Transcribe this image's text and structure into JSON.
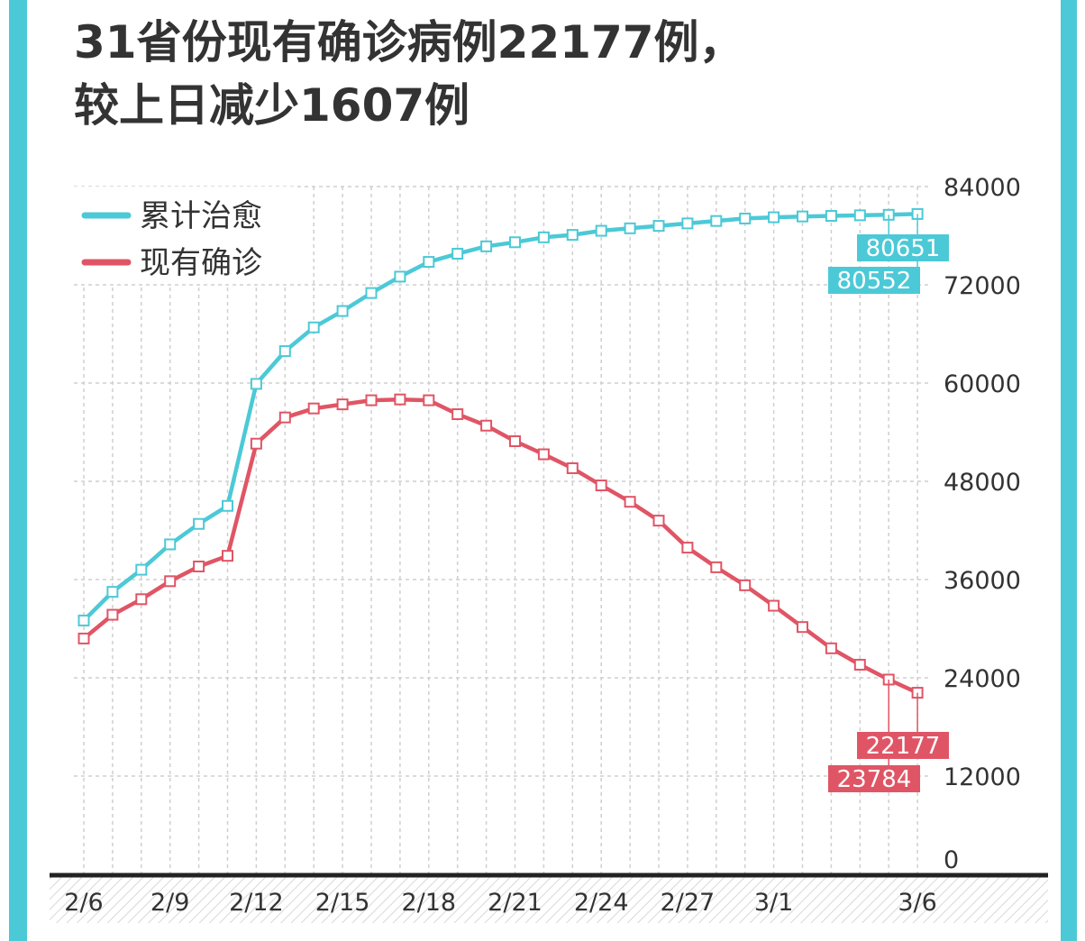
{
  "title_lines": [
    "31省份现有确诊病例22177例，",
    "较上日减少1607例"
  ],
  "colors": {
    "border": "#4cc9d6",
    "cured": "#4cc9d6",
    "active": "#e05565",
    "grid": "#cfcfcf",
    "axis": "#222222",
    "text": "#333333"
  },
  "chart_data": {
    "type": "line",
    "title": "31省份现有确诊病例22177例，较上日减少1607例",
    "x": [
      "2/6",
      "2/7",
      "2/8",
      "2/9",
      "2/10",
      "2/11",
      "2/12",
      "2/13",
      "2/14",
      "2/15",
      "2/16",
      "2/17",
      "2/18",
      "2/19",
      "2/20",
      "2/21",
      "2/22",
      "2/23",
      "2/24",
      "2/25",
      "2/26",
      "2/27",
      "2/28",
      "2/29",
      "3/1",
      "3/2",
      "3/3",
      "3/4",
      "3/5",
      "3/6"
    ],
    "x_tick_labels": [
      "2/6",
      "2/9",
      "2/12",
      "2/15",
      "2/18",
      "2/21",
      "2/24",
      "2/27",
      "3/1",
      "3/6"
    ],
    "x_tick_indices": [
      0,
      3,
      6,
      9,
      12,
      15,
      18,
      21,
      24,
      29
    ],
    "ylim": [
      0,
      84000
    ],
    "y_ticks": [
      0,
      12000,
      24000,
      36000,
      48000,
      60000,
      72000,
      84000
    ],
    "y_axis_position": "right",
    "grid": true,
    "legend_position": "top-left",
    "series": [
      {
        "name": "累计治愈",
        "color": "#4cc9d6",
        "values": [
          31000,
          34500,
          37200,
          40300,
          42800,
          45000,
          59900,
          63900,
          66800,
          68800,
          71000,
          73000,
          74800,
          75800,
          76700,
          77200,
          77800,
          78100,
          78600,
          78900,
          79200,
          79500,
          79800,
          80100,
          80250,
          80350,
          80420,
          80490,
          80552,
          80651
        ]
      },
      {
        "name": "现有确诊",
        "color": "#e05565",
        "values": [
          28800,
          31700,
          33600,
          35800,
          37600,
          38900,
          52600,
          55800,
          56900,
          57400,
          57900,
          58000,
          57900,
          56200,
          54800,
          52900,
          51300,
          49600,
          47500,
          45500,
          43200,
          39900,
          37500,
          35300,
          32800,
          30200,
          27600,
          25600,
          23784,
          22177
        ]
      }
    ],
    "end_labels": {
      "cured": [
        "80651",
        "80552"
      ],
      "active": [
        "22177",
        "23784"
      ]
    }
  }
}
